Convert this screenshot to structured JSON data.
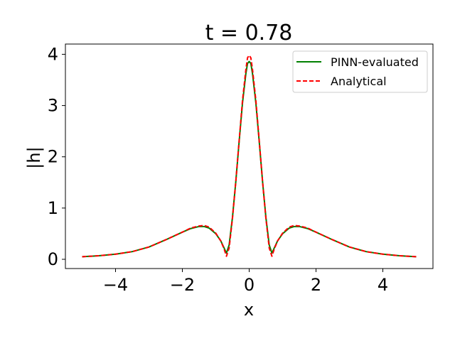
{
  "chart_data": {
    "type": "line",
    "title": "t = 0.78",
    "xlabel": "x",
    "ylabel": "|h|",
    "xlim": [
      -5.5,
      5.5
    ],
    "ylim": [
      -0.18,
      4.2
    ],
    "x_ticks": [
      -4,
      -2,
      0,
      2,
      4
    ],
    "x_tick_labels": [
      "−4",
      "−2",
      "0",
      "2",
      "4"
    ],
    "y_ticks": [
      0,
      1,
      2,
      3,
      4
    ],
    "y_tick_labels": [
      "0",
      "1",
      "2",
      "3",
      "4"
    ],
    "grid": false,
    "legend_position": "top-right",
    "series": [
      {
        "name": "PINN-evaluated",
        "color": "#008000",
        "style": "solid",
        "x": [
          -5.0,
          -4.5,
          -4.0,
          -3.5,
          -3.0,
          -2.5,
          -2.0,
          -1.75,
          -1.5,
          -1.35,
          -1.2,
          -1.0,
          -0.85,
          -0.75,
          -0.68,
          -0.6,
          -0.5,
          -0.4,
          -0.3,
          -0.2,
          -0.1,
          -0.05,
          0.0,
          0.05,
          0.1,
          0.2,
          0.3,
          0.4,
          0.5,
          0.6,
          0.68,
          0.75,
          0.85,
          1.0,
          1.2,
          1.35,
          1.5,
          1.75,
          2.0,
          2.5,
          3.0,
          3.5,
          4.0,
          4.5,
          5.0
        ],
        "y": [
          0.05,
          0.07,
          0.1,
          0.15,
          0.24,
          0.38,
          0.53,
          0.6,
          0.64,
          0.64,
          0.61,
          0.5,
          0.36,
          0.22,
          0.12,
          0.28,
          0.82,
          1.52,
          2.3,
          3.05,
          3.62,
          3.82,
          3.86,
          3.82,
          3.62,
          3.05,
          2.3,
          1.52,
          0.82,
          0.28,
          0.12,
          0.22,
          0.36,
          0.5,
          0.61,
          0.64,
          0.64,
          0.6,
          0.53,
          0.38,
          0.24,
          0.15,
          0.1,
          0.07,
          0.05
        ]
      },
      {
        "name": "Analytical",
        "color": "#ff0000",
        "style": "dashed",
        "x": [
          -5.0,
          -4.5,
          -4.0,
          -3.5,
          -3.0,
          -2.5,
          -2.0,
          -1.75,
          -1.5,
          -1.35,
          -1.2,
          -1.0,
          -0.85,
          -0.75,
          -0.68,
          -0.6,
          -0.5,
          -0.4,
          -0.3,
          -0.2,
          -0.1,
          -0.05,
          0.0,
          0.05,
          0.1,
          0.2,
          0.3,
          0.4,
          0.5,
          0.6,
          0.68,
          0.75,
          0.85,
          1.0,
          1.2,
          1.35,
          1.5,
          1.75,
          2.0,
          2.5,
          3.0,
          3.5,
          4.0,
          4.5,
          5.0
        ],
        "y": [
          0.05,
          0.07,
          0.1,
          0.15,
          0.24,
          0.38,
          0.53,
          0.61,
          0.65,
          0.66,
          0.63,
          0.51,
          0.36,
          0.2,
          0.06,
          0.22,
          0.8,
          1.52,
          2.32,
          3.1,
          3.7,
          3.93,
          3.98,
          3.93,
          3.7,
          3.1,
          2.32,
          1.52,
          0.8,
          0.22,
          0.06,
          0.2,
          0.36,
          0.51,
          0.63,
          0.66,
          0.65,
          0.61,
          0.53,
          0.38,
          0.24,
          0.15,
          0.1,
          0.07,
          0.05
        ]
      }
    ]
  }
}
